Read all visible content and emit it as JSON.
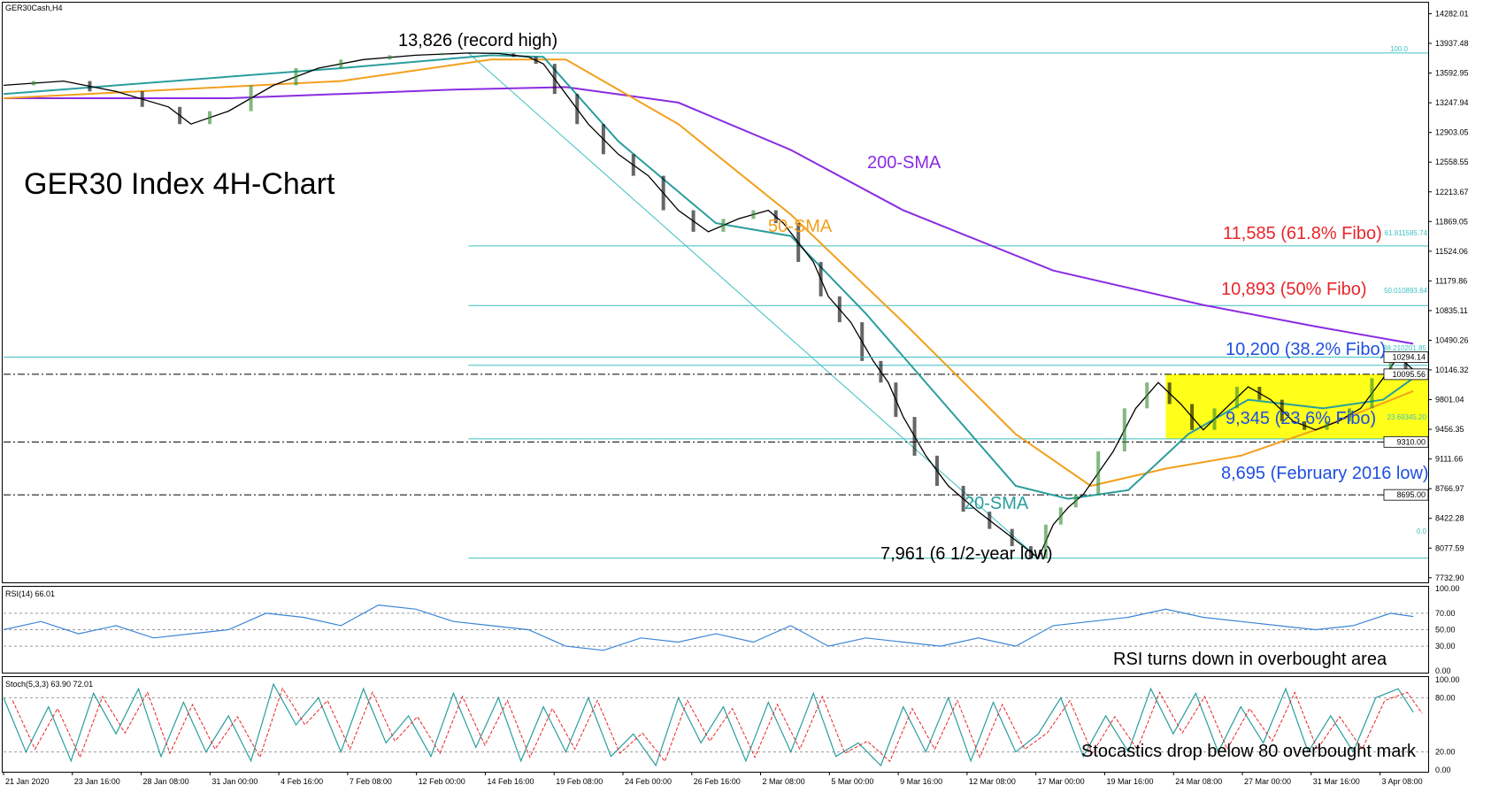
{
  "symbol_label": "GER30Cash,H4",
  "title": "GER30 Index 4H-Chart",
  "colors": {
    "sma20": "#2a9d9d",
    "sma50": "#f2a01c",
    "sma200": "#8a2be2",
    "fib_line": "#40c0c0",
    "fib_red": "#e8262b",
    "fib_blue": "#1f4fe0",
    "rsi": "#3b86d6",
    "stoch_main": "#2a9d9d",
    "stoch_signal": "#e8262b",
    "range_box": "#ffff00",
    "cloud_upper": "#f08040",
    "cloud_lower": "#c080c0",
    "chikou": "#33cc33",
    "kijun": "#0000cc",
    "tenkan": "#cc0000"
  },
  "annotations": {
    "record_high": "13,826 (record high)",
    "low": "7,961 (6 1/2-year low)",
    "sma200": "200-SMA",
    "sma50": "50-SMA",
    "sma20": "20-SMA",
    "fib618": "11,585 (61.8% Fibo)",
    "fib50": "10,893 (50% Fibo)",
    "fib382": "10,200 (38.2% Fibo)",
    "fib236": "9,345 (23.6% Fibo)",
    "feb2016": "8,695 (February 2016 low)",
    "rsi_note": "RSI turns down in overbought area",
    "stoch_note": "Stocastics drop below 80 overbought mark"
  },
  "fib_small_labels": {
    "f100": "100.0",
    "f618": "61.811585.74",
    "f50": "50.010893.64",
    "f382": "38.210201.85",
    "f236": "23.69345.20",
    "f0": "0.0"
  },
  "price_tags": {
    "current": "10294.14",
    "upper_range": "10095.56",
    "lower_range": "9310.00",
    "feb_low": "8695.00",
    "hidden": "10146.32"
  },
  "indicator_labels": {
    "rsi": "RSI(14) 66.01",
    "stoch": "Stoch(5,3,3) 63.90 72.01"
  },
  "chart_data": {
    "type": "line",
    "x_labels": [
      "21 Jan 2020",
      "23 Jan 16:00",
      "28 Jan 08:00",
      "31 Jan 00:00",
      "4 Feb 16:00",
      "7 Feb 08:00",
      "12 Feb 00:00",
      "14 Feb 16:00",
      "19 Feb 08:00",
      "24 Feb 00:00",
      "26 Feb 16:00",
      "2 Mar 08:00",
      "5 Mar 00:00",
      "9 Mar 16:00",
      "12 Mar 08:00",
      "17 Mar 00:00",
      "19 Mar 16:00",
      "24 Mar 08:00",
      "27 Mar 00:00",
      "31 Mar 16:00",
      "3 Apr 08:00"
    ],
    "price_ticks": [
      "14282.01",
      "13937.48",
      "13592.95",
      "13247.94",
      "12903.05",
      "12558.55",
      "12213.67",
      "11869.05",
      "11524.06",
      "11179.86",
      "10835.11",
      "10490.26",
      "10146.32",
      "9801.04",
      "9456.35",
      "9111.66",
      "8766.97",
      "8422.28",
      "8077.59",
      "7732.90"
    ],
    "ylim": [
      7700,
      14400
    ],
    "price_path": [
      [
        0,
        13450
      ],
      [
        8,
        13500
      ],
      [
        15,
        13380
      ],
      [
        22,
        13200
      ],
      [
        25,
        13000
      ],
      [
        30,
        13150
      ],
      [
        36,
        13450
      ],
      [
        42,
        13650
      ],
      [
        48,
        13750
      ],
      [
        55,
        13800
      ],
      [
        62,
        13826
      ],
      [
        66,
        13820
      ],
      [
        70,
        13780
      ],
      [
        72,
        13700
      ],
      [
        75,
        13350
      ],
      [
        78,
        13000
      ],
      [
        82,
        12650
      ],
      [
        86,
        12400
      ],
      [
        90,
        12000
      ],
      [
        94,
        11750
      ],
      [
        98,
        11900
      ],
      [
        102,
        12000
      ],
      [
        104,
        11850
      ],
      [
        108,
        11400
      ],
      [
        110,
        11000
      ],
      [
        113,
        10700
      ],
      [
        116,
        10250
      ],
      [
        118,
        10000
      ],
      [
        120,
        9600
      ],
      [
        123,
        9150
      ],
      [
        126,
        8800
      ],
      [
        130,
        8500
      ],
      [
        133,
        8300
      ],
      [
        136,
        8100
      ],
      [
        138,
        7961
      ],
      [
        140,
        8350
      ],
      [
        142,
        8550
      ],
      [
        144,
        8700
      ],
      [
        148,
        9200
      ],
      [
        151,
        9700
      ],
      [
        154,
        10000
      ],
      [
        157,
        9750
      ],
      [
        160,
        9450
      ],
      [
        163,
        9700
      ],
      [
        166,
        9950
      ],
      [
        169,
        9800
      ],
      [
        172,
        9550
      ],
      [
        175,
        9450
      ],
      [
        178,
        9550
      ],
      [
        181,
        9700
      ],
      [
        184,
        10050
      ],
      [
        186,
        10300
      ],
      [
        188,
        10150
      ]
    ],
    "sma200_path": [
      [
        0,
        13300
      ],
      [
        30,
        13300
      ],
      [
        60,
        13400
      ],
      [
        75,
        13430
      ],
      [
        90,
        13250
      ],
      [
        105,
        12700
      ],
      [
        120,
        12000
      ],
      [
        140,
        11300
      ],
      [
        160,
        10900
      ],
      [
        175,
        10650
      ],
      [
        188,
        10450
      ]
    ],
    "sma50_path": [
      [
        0,
        13300
      ],
      [
        45,
        13500
      ],
      [
        65,
        13750
      ],
      [
        75,
        13750
      ],
      [
        90,
        13000
      ],
      [
        105,
        11950
      ],
      [
        120,
        10700
      ],
      [
        135,
        9400
      ],
      [
        145,
        8800
      ],
      [
        155,
        9000
      ],
      [
        165,
        9150
      ],
      [
        175,
        9450
      ],
      [
        188,
        9900
      ]
    ],
    "sma20_path": [
      [
        0,
        13350
      ],
      [
        45,
        13650
      ],
      [
        65,
        13800
      ],
      [
        72,
        13780
      ],
      [
        82,
        12800
      ],
      [
        95,
        11850
      ],
      [
        105,
        11700
      ],
      [
        115,
        10800
      ],
      [
        125,
        9800
      ],
      [
        135,
        8800
      ],
      [
        142,
        8650
      ],
      [
        150,
        8750
      ],
      [
        158,
        9400
      ],
      [
        166,
        9800
      ],
      [
        176,
        9700
      ],
      [
        184,
        9800
      ],
      [
        188,
        10050
      ]
    ],
    "fib_levels": [
      {
        "pct": 100.0,
        "value": 13826
      },
      {
        "pct": 61.8,
        "value": 11585
      },
      {
        "pct": 50.0,
        "value": 10893
      },
      {
        "pct": 38.2,
        "value": 10200
      },
      {
        "pct": 23.6,
        "value": 9345
      },
      {
        "pct": 0.0,
        "value": 7961
      }
    ],
    "horizontal_levels": [
      10095.56,
      9310.0,
      8695.0
    ],
    "current_price": 10294.14,
    "range_box": {
      "x_from": 155,
      "x_to": 190,
      "y_from": 9345,
      "y_to": 10095.56
    },
    "rsi": {
      "label": "RSI(14)",
      "value": 66.01,
      "levels": [
        70,
        50,
        30
      ],
      "ylim": [
        0,
        100
      ],
      "ticks": [
        "100.00",
        "70.00",
        "50.00",
        "30.00",
        "0.00"
      ],
      "path": [
        [
          0,
          50
        ],
        [
          5,
          60
        ],
        [
          10,
          45
        ],
        [
          15,
          55
        ],
        [
          20,
          40
        ],
        [
          25,
          45
        ],
        [
          30,
          50
        ],
        [
          35,
          70
        ],
        [
          40,
          65
        ],
        [
          45,
          55
        ],
        [
          50,
          80
        ],
        [
          55,
          75
        ],
        [
          60,
          60
        ],
        [
          65,
          55
        ],
        [
          70,
          50
        ],
        [
          75,
          30
        ],
        [
          80,
          25
        ],
        [
          85,
          40
        ],
        [
          90,
          35
        ],
        [
          95,
          45
        ],
        [
          100,
          35
        ],
        [
          105,
          55
        ],
        [
          110,
          30
        ],
        [
          115,
          40
        ],
        [
          120,
          35
        ],
        [
          125,
          30
        ],
        [
          130,
          40
        ],
        [
          135,
          30
        ],
        [
          140,
          55
        ],
        [
          145,
          60
        ],
        [
          150,
          65
        ],
        [
          155,
          75
        ],
        [
          160,
          65
        ],
        [
          165,
          60
        ],
        [
          170,
          55
        ],
        [
          175,
          50
        ],
        [
          180,
          55
        ],
        [
          185,
          70
        ],
        [
          188,
          66
        ]
      ]
    },
    "stoch": {
      "label": "Stoch(5,3,3)",
      "main": 63.9,
      "signal": 72.01,
      "levels": [
        80,
        20
      ],
      "ylim": [
        0,
        100
      ],
      "ticks": [
        "100.00",
        "80.00",
        "20.00",
        "0.00"
      ],
      "main_path": [
        [
          0,
          80
        ],
        [
          3,
          20
        ],
        [
          6,
          70
        ],
        [
          9,
          10
        ],
        [
          12,
          85
        ],
        [
          15,
          40
        ],
        [
          18,
          90
        ],
        [
          21,
          15
        ],
        [
          24,
          75
        ],
        [
          27,
          20
        ],
        [
          30,
          60
        ],
        [
          33,
          10
        ],
        [
          36,
          95
        ],
        [
          39,
          50
        ],
        [
          42,
          80
        ],
        [
          45,
          20
        ],
        [
          48,
          90
        ],
        [
          51,
          30
        ],
        [
          54,
          60
        ],
        [
          57,
          15
        ],
        [
          60,
          85
        ],
        [
          63,
          25
        ],
        [
          66,
          80
        ],
        [
          69,
          10
        ],
        [
          72,
          70
        ],
        [
          75,
          20
        ],
        [
          78,
          80
        ],
        [
          81,
          15
        ],
        [
          84,
          40
        ],
        [
          87,
          5
        ],
        [
          90,
          80
        ],
        [
          93,
          30
        ],
        [
          96,
          70
        ],
        [
          99,
          10
        ],
        [
          102,
          75
        ],
        [
          105,
          20
        ],
        [
          108,
          85
        ],
        [
          111,
          15
        ],
        [
          114,
          30
        ],
        [
          117,
          5
        ],
        [
          120,
          70
        ],
        [
          123,
          20
        ],
        [
          126,
          80
        ],
        [
          129,
          10
        ],
        [
          132,
          75
        ],
        [
          135,
          20
        ],
        [
          138,
          40
        ],
        [
          141,
          80
        ],
        [
          144,
          15
        ],
        [
          147,
          60
        ],
        [
          150,
          20
        ],
        [
          153,
          90
        ],
        [
          156,
          40
        ],
        [
          159,
          85
        ],
        [
          162,
          20
        ],
        [
          165,
          70
        ],
        [
          168,
          30
        ],
        [
          171,
          90
        ],
        [
          174,
          20
        ],
        [
          177,
          60
        ],
        [
          180,
          20
        ],
        [
          183,
          80
        ],
        [
          186,
          90
        ],
        [
          188,
          64
        ]
      ]
    }
  }
}
